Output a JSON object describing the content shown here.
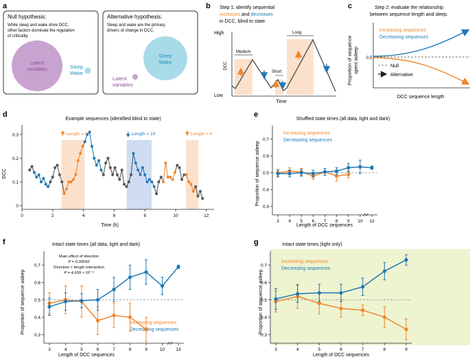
{
  "colors": {
    "orange": "#f0862e",
    "blue": "#1f78b4",
    "gray": "#555555",
    "latent_purple": "#c9a3cf",
    "latent_text": "#8d4f96",
    "sleep_blue": "#a7dbe9",
    "shade_orange": "#fbe1cc",
    "shade_blue": "#cfdcf1",
    "light_green": "#eef3d0"
  },
  "panel_a": {
    "label": "a",
    "null_box": {
      "title": "Null hypothesis:",
      "body_lines": [
        "While sleep and wake drive DCC,",
        "other factors dominate the regulation",
        "of criticality."
      ],
      "latent_lines": [
        "Latent",
        "variables"
      ],
      "sleep_lines": [
        "Sleep",
        "Wake"
      ]
    },
    "alt_box": {
      "title": "Alternative hypothesis:",
      "body_lines": [
        "Sleep and wake are the primary",
        "drivers of change in DCC."
      ],
      "sleep_lines": [
        "Sleep",
        "Wake"
      ],
      "latent_lines": [
        "Latent",
        "variables"
      ]
    }
  },
  "panel_b": {
    "label": "b",
    "title_lines": [
      "Step 1: identify sequential",
      "in DCC, blind to state."
    ],
    "title_increases": "increases",
    "title_and": " and ",
    "title_decreases": "decreases",
    "y_high": "High",
    "y_low": "Low",
    "y_axis": "DCC",
    "x_axis": "Time",
    "labels": [
      "Medium",
      "Short",
      "Long"
    ]
  },
  "panel_c": {
    "label": "c",
    "title_lines": [
      "Step 2: evaluate the relationship",
      "between sequence length and sleep."
    ],
    "y_axis_lines": [
      "Proportion of sequence",
      "spent asleep"
    ],
    "y_tick": "0.5",
    "x_axis": "DCC sequence length",
    "legend_increasing": "Increasing sequences",
    "legend_decreasing": "Decreasing sequences",
    "legend_null": "Null",
    "legend_alternative": "Alternative"
  },
  "panel_d": {
    "label": "d",
    "title": "Example sequences (identified blind to state)",
    "y_axis": "DCC",
    "x_axis": "Time (h)",
    "y_ticks": [
      "0",
      "0.1",
      "0.2",
      "0.3"
    ],
    "x_ticks": [
      "0",
      "2",
      "4",
      "6",
      "8",
      "10",
      "12"
    ],
    "annotations": [
      "Length = 9",
      "Length = 10",
      "Length = 4"
    ],
    "chart_data": {
      "type": "line",
      "title": "Example sequences (identified blind to state)",
      "xlabel": "Time (h)",
      "ylabel": "DCC",
      "xlim": [
        0,
        12.5
      ],
      "ylim": [
        -0.01,
        0.34
      ],
      "x": [
        0.5,
        0.65,
        0.8,
        0.95,
        1.1,
        1.25,
        1.4,
        1.55,
        1.7,
        1.85,
        2.0,
        2.15,
        2.3,
        2.45,
        2.6,
        2.75,
        2.9,
        3.05,
        3.2,
        3.35,
        3.5,
        3.65,
        3.8,
        3.95,
        4.1,
        4.25,
        4.4,
        4.55,
        4.7,
        4.85,
        5.0,
        5.15,
        5.3,
        5.45,
        5.6,
        5.75,
        5.9,
        6.05,
        6.2,
        6.35,
        6.5,
        6.65,
        6.8,
        6.95,
        7.1,
        7.25,
        7.4,
        7.55,
        7.7,
        7.85,
        8.0,
        8.15,
        8.3,
        8.45,
        8.6,
        8.75,
        8.9,
        9.05,
        9.2,
        9.35,
        9.5,
        9.65,
        9.8,
        9.95,
        10.1,
        10.25,
        10.4,
        10.55,
        10.7,
        10.85,
        11.0,
        11.15,
        11.3,
        11.45,
        11.6,
        11.75
      ],
      "y": [
        0.15,
        0.165,
        0.14,
        0.12,
        0.13,
        0.1,
        0.115,
        0.09,
        0.08,
        0.1,
        0.12,
        0.16,
        0.17,
        0.13,
        0.1,
        0.05,
        0.07,
        0.1,
        0.1,
        0.11,
        0.13,
        0.19,
        0.22,
        0.25,
        0.27,
        0.3,
        0.31,
        0.25,
        0.2,
        0.17,
        0.19,
        0.15,
        0.13,
        0.18,
        0.2,
        0.16,
        0.13,
        0.16,
        0.13,
        0.11,
        0.15,
        0.09,
        0.08,
        0.1,
        0.13,
        0.22,
        0.18,
        0.15,
        0.13,
        0.16,
        0.13,
        0.1,
        0.11,
        0.1,
        0.08,
        0.05,
        0.1,
        0.12,
        0.1,
        0.18,
        0.12,
        0.12,
        0.11,
        0.14,
        0.17,
        0.16,
        0.11,
        0.13,
        0.13,
        0.1,
        0.09,
        0.06,
        0.08,
        0.04,
        0.06,
        0.03
      ],
      "point_colors": [
        "g",
        "g",
        "b",
        "b",
        "b",
        "b",
        "b",
        "b",
        "b",
        "g",
        "g",
        "g",
        "g",
        "g",
        "g",
        "o",
        "o",
        "o",
        "o",
        "o",
        "o",
        "o",
        "o",
        "o",
        "b",
        "b",
        "b",
        "b",
        "b",
        "b",
        "b",
        "b",
        "g",
        "g",
        "g",
        "g",
        "g",
        "g",
        "g",
        "g",
        "g",
        "g",
        "g",
        "g",
        "g",
        "b",
        "b",
        "b",
        "b",
        "b",
        "b",
        "b",
        "b",
        "b",
        "b",
        "g",
        "g",
        "g",
        "o",
        "o",
        "o",
        "o",
        "o",
        "o",
        "g",
        "g",
        "g",
        "g",
        "o",
        "o",
        "o",
        "o",
        "g",
        "g",
        "g",
        "g"
      ],
      "sequences": [
        {
          "direction": "increasing",
          "length": 9,
          "x_start": 2.7,
          "x_end": 3.95
        },
        {
          "direction": "decreasing",
          "length": 10,
          "x_start": 6.95,
          "x_end": 8.3
        },
        {
          "direction": "increasing",
          "length": 4,
          "x_start": 10.8,
          "x_end": 11.35
        }
      ]
    }
  },
  "panel_e": {
    "label": "e",
    "title": "Shuffled state times (all data, light and dark)",
    "legend_increasing": "Increasing sequences",
    "legend_decreasing": "Decreasing sequences",
    "y_axis": "Proportion of sequence asleep",
    "x_axis": "Length of DCC sequences",
    "y_ticks": [
      "0.3",
      "0.4",
      "0.5",
      "0.6",
      "0.7"
    ],
    "chart_data": {
      "type": "line",
      "title": "Shuffled state times (all data, light and dark)",
      "xlabel": "Length of DCC sequences",
      "ylabel": "Proportion of sequence asleep",
      "categories": [
        "3",
        "4",
        "5",
        "6",
        "7",
        "8",
        "9",
        "10",
        "13"
      ],
      "ylim": [
        0.25,
        0.78
      ],
      "series": [
        {
          "name": "Increasing sequences",
          "values": [
            0.5,
            0.51,
            0.505,
            0.48,
            0.505,
            0.48,
            0.49,
            null,
            null
          ],
          "errors": [
            0.02,
            0.02,
            0.02,
            0.02,
            0.02,
            0.03,
            0.02,
            null,
            null
          ]
        },
        {
          "name": "Decreasing sequences",
          "values": [
            0.495,
            0.495,
            0.5,
            0.495,
            0.505,
            0.51,
            0.53,
            0.535,
            0.53
          ],
          "errors": [
            0.02,
            0.02,
            0.02,
            0.02,
            0.02,
            0.02,
            0.025,
            0.04,
            0.01
          ]
        }
      ]
    }
  },
  "panel_f": {
    "label": "f",
    "title": "Intact state times (all data, light and dark)",
    "stats_lines": [
      "Main effect of direction",
      "P = 0.00092",
      "Direction × length interaction",
      "P = 4.609 × 10⁻⁵"
    ],
    "legend_increasing": "Increasing sequences",
    "legend_decreasing": "Decreasing sequences",
    "y_axis": "Proportion of sequence asleep",
    "x_axis": "Length of DCC sequences",
    "y_ticks": [
      "0.3",
      "0.4",
      "0.5",
      "0.6",
      "0.7"
    ],
    "chart_data": {
      "type": "line",
      "title": "Intact state times (all data, light and dark)",
      "xlabel": "Length of DCC sequences",
      "ylabel": "Proportion of sequence asleep",
      "categories": [
        "3",
        "4",
        "5",
        "6",
        "7",
        "8",
        "9",
        "10",
        "13"
      ],
      "ylim": [
        0.25,
        0.78
      ],
      "series": [
        {
          "name": "Increasing sequences",
          "values": [
            0.48,
            0.5,
            0.49,
            0.38,
            0.41,
            0.4,
            0.33,
            null,
            null
          ],
          "errors": [
            0.06,
            0.08,
            0.09,
            0.08,
            0.07,
            0.08,
            0.07,
            null,
            null
          ]
        },
        {
          "name": "Decreasing sequences",
          "values": [
            0.46,
            0.49,
            0.495,
            0.5,
            0.56,
            0.63,
            0.66,
            0.58,
            0.69
          ],
          "errors": [
            0.05,
            0.05,
            0.04,
            0.06,
            0.07,
            0.07,
            0.07,
            0.05,
            0.01
          ]
        }
      ]
    }
  },
  "panel_g": {
    "label": "g",
    "title": "Intact state times (light only)",
    "legend_increasing": "Increasing sequences",
    "legend_decreasing": "Decreasing sequences",
    "y_axis": "Proportion of sequence asleep",
    "x_axis": "Length of DCC sequences",
    "y_ticks": [
      "0.3",
      "0.4",
      "0.5",
      "0.6",
      "0.7"
    ],
    "chart_data": {
      "type": "line",
      "title": "Intact state times (light only)",
      "xlabel": "Length of DCC sequences",
      "ylabel": "Proportion of sequence asleep",
      "categories": [
        "3",
        "4",
        "5",
        "6",
        "7",
        "8",
        "9"
      ],
      "ylim": [
        0.25,
        0.78
      ],
      "series": [
        {
          "name": "Increasing sequences",
          "values": [
            0.49,
            0.52,
            0.48,
            0.45,
            0.44,
            0.4,
            0.33
          ],
          "errors": [
            0.06,
            0.07,
            0.06,
            0.05,
            0.03,
            0.06,
            0.06
          ]
        },
        {
          "name": "Decreasing sequences",
          "values": [
            0.505,
            0.535,
            0.54,
            0.54,
            0.575,
            0.665,
            0.73
          ],
          "errors": [
            0.06,
            0.05,
            0.05,
            0.05,
            0.05,
            0.05,
            0.03
          ]
        }
      ]
    }
  }
}
